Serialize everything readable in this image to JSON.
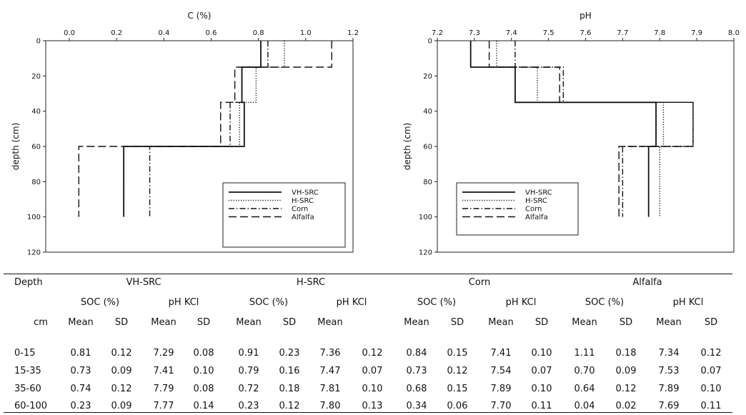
{
  "chart_data": [
    {
      "type": "line",
      "title": "C (%)",
      "xlabel": "C (%)",
      "ylabel": "depth (cm)",
      "xlim": [
        -0.1,
        1.2
      ],
      "ylim": [
        0,
        120
      ],
      "y_inverted": true,
      "x_axis_position": "top",
      "xticks": [
        "0.0",
        "0.2",
        "0.4",
        "0.6",
        "0.8",
        "1.0",
        "1.2"
      ],
      "yticks": [
        "0",
        "20",
        "40",
        "60",
        "80",
        "100",
        "120"
      ],
      "depth_breaks": [
        0,
        15,
        35,
        60,
        100
      ],
      "legend_position": "bottom-right",
      "grid": false,
      "series": [
        {
          "name": "VH-SRC",
          "style": "solid",
          "values": [
            0.81,
            0.73,
            0.74,
            0.23
          ]
        },
        {
          "name": "H-SRC",
          "style": "dotted",
          "values": [
            0.91,
            0.79,
            0.72,
            0.23
          ]
        },
        {
          "name": "Corn",
          "style": "dashdot",
          "values": [
            0.84,
            0.73,
            0.68,
            0.34
          ]
        },
        {
          "name": "Alfalfa",
          "style": "dashed",
          "values": [
            1.11,
            0.7,
            0.64,
            0.04
          ]
        }
      ]
    },
    {
      "type": "line",
      "title": "pH",
      "xlabel": "pH",
      "ylabel": "depth (cm)",
      "xlim": [
        7.2,
        8.0
      ],
      "ylim": [
        0,
        120
      ],
      "y_inverted": true,
      "x_axis_position": "top",
      "xticks": [
        "7.2",
        "7.3",
        "7.4",
        "7.5",
        "7.6",
        "7.7",
        "7.8",
        "7.9",
        "8.0"
      ],
      "yticks": [
        "0",
        "20",
        "40",
        "60",
        "80",
        "100",
        "120"
      ],
      "depth_breaks": [
        0,
        15,
        35,
        60,
        100
      ],
      "legend_position": "bottom-left",
      "grid": false,
      "series": [
        {
          "name": "VH-SRC",
          "style": "solid",
          "values": [
            7.29,
            7.41,
            7.79,
            7.77
          ]
        },
        {
          "name": "H-SRC",
          "style": "dotted",
          "values": [
            7.36,
            7.47,
            7.81,
            7.8
          ]
        },
        {
          "name": "Corn",
          "style": "dashdot",
          "values": [
            7.41,
            7.54,
            7.89,
            7.7
          ]
        },
        {
          "name": "Alfalfa",
          "style": "dashed",
          "values": [
            7.34,
            7.53,
            7.89,
            7.69
          ]
        }
      ]
    }
  ],
  "table": {
    "depth_header": "Depth",
    "unit_header": "cm",
    "groups": [
      "VH-SRC",
      "H-SRC",
      "Corn",
      "Alfalfa"
    ],
    "subheaders": [
      "SOC (%)",
      "pH KCl"
    ],
    "stat_headers": [
      "Mean",
      "SD",
      "Mean",
      "SD"
    ],
    "hsrc_stat_headers": [
      "Mean",
      "SD",
      "Mean",
      ""
    ],
    "rows": [
      {
        "depth": "0-15",
        "values": [
          "0.81",
          "0.12",
          "7.29",
          "0.08",
          "0.91",
          "0.23",
          "7.36",
          "0.12",
          "0.84",
          "0.15",
          "7.41",
          "0.10",
          "1.11",
          "0.18",
          "7.34",
          "0.12"
        ]
      },
      {
        "depth": "15-35",
        "values": [
          "0.73",
          "0.09",
          "7.41",
          "0.10",
          "0.79",
          "0.16",
          "7.47",
          "0.07",
          "0.73",
          "0.12",
          "7.54",
          "0.07",
          "0.70",
          "0.09",
          "7.53",
          "0.07"
        ]
      },
      {
        "depth": "35-60",
        "values": [
          "0.74",
          "0.12",
          "7.79",
          "0.08",
          "0.72",
          "0.18",
          "7.81",
          "0.10",
          "0.68",
          "0.15",
          "7.89",
          "0.10",
          "0.64",
          "0.12",
          "7.89",
          "0.10"
        ]
      },
      {
        "depth": "60-100",
        "values": [
          "0.23",
          "0.09",
          "7.77",
          "0.14",
          "0.23",
          "0.12",
          "7.80",
          "0.13",
          "0.34",
          "0.06",
          "7.70",
          "0.11",
          "0.04",
          "0.02",
          "7.69",
          "0.11"
        ]
      }
    ]
  }
}
